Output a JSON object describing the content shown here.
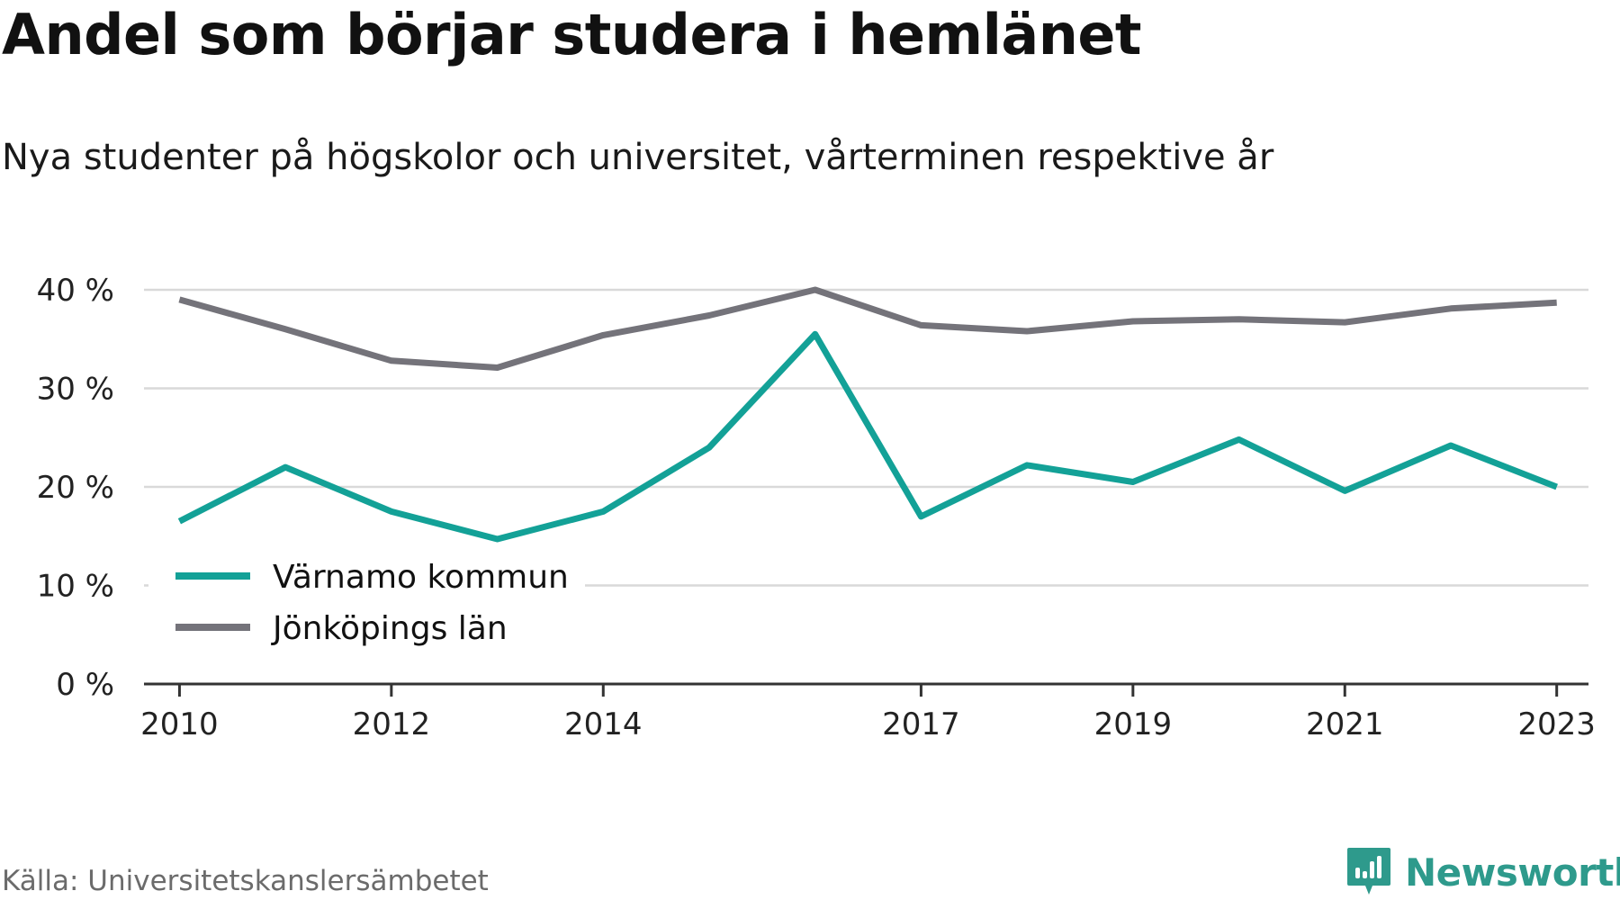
{
  "header": {
    "title": "Andel som börjar studera i hemlänet",
    "subtitle": "Nya studenter på högskolor och universitet, vårterminen respektive år"
  },
  "footer": {
    "source": "Källa: Universitetskanslersämbetet",
    "brand": "Newsworthy",
    "brand_icon": "newsworthy-logo-icon"
  },
  "colors": {
    "varnamo": "#13a197",
    "jonkoping": "#74737a",
    "grid": "#d9d9d9",
    "axis": "#333333",
    "brand": "#2e9a8c"
  },
  "chart_data": {
    "type": "line",
    "title": "Andel som börjar studera i hemlänet",
    "subtitle": "Nya studenter på högskolor och universitet, vårterminen respektive år",
    "xlabel": "",
    "ylabel": "",
    "x": [
      2010,
      2011,
      2012,
      2013,
      2014,
      2015,
      2016,
      2017,
      2018,
      2019,
      2020,
      2021,
      2022,
      2023
    ],
    "x_ticks": [
      "2010",
      "2012",
      "2014",
      "2017",
      "2019",
      "2021",
      "2023"
    ],
    "y_ticks": [
      "0 %",
      "10 %",
      "20 %",
      "30 %",
      "40 %"
    ],
    "ylim": [
      0,
      40
    ],
    "grid": true,
    "legend_position": "bottom-left",
    "series": [
      {
        "name": "Värnamo kommun",
        "color": "#13a197",
        "values": [
          16.5,
          22.0,
          17.5,
          14.7,
          17.5,
          24.0,
          35.5,
          17.0,
          22.2,
          20.5,
          24.8,
          19.6,
          24.2,
          20.0
        ]
      },
      {
        "name": "Jönköpings län",
        "color": "#74737a",
        "values": [
          39.0,
          36.0,
          32.8,
          32.1,
          35.4,
          37.4,
          40.0,
          36.4,
          35.8,
          36.8,
          37.0,
          36.7,
          38.1,
          38.7
        ]
      }
    ]
  }
}
